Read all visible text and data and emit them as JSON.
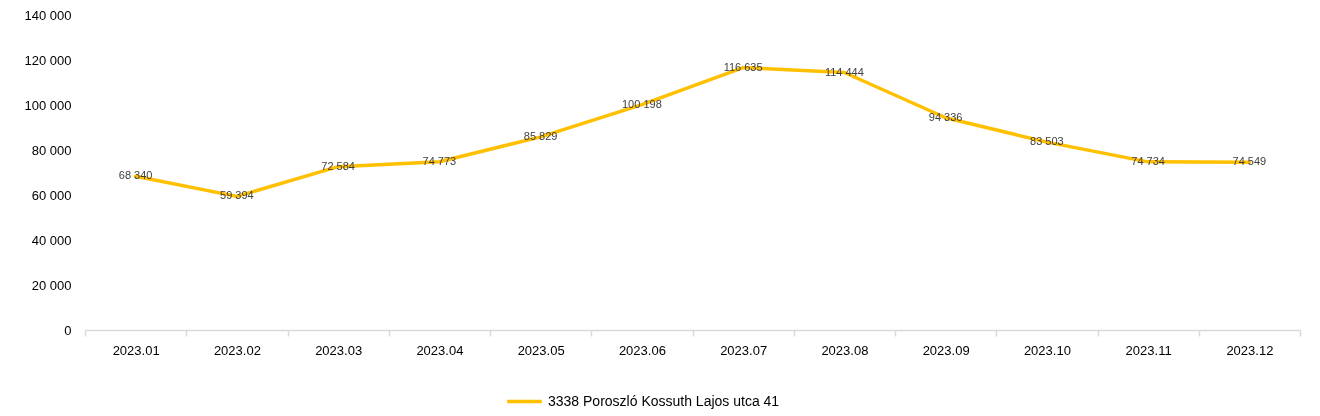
{
  "chart_data": {
    "type": "line",
    "categories": [
      "2023.01",
      "2023.02",
      "2023.03",
      "2023.04",
      "2023.05",
      "2023.06",
      "2023.07",
      "2023.08",
      "2023.09",
      "2023.10",
      "2023.11",
      "2023.12"
    ],
    "series": [
      {
        "name": "3338 Poroszló Kossuth Lajos utca 41",
        "color": "#ffc000",
        "values": [
          68340,
          59394,
          72584,
          74773,
          85829,
          100198,
          116635,
          114444,
          94336,
          83503,
          74734,
          74549
        ],
        "value_labels": [
          "68 340",
          "59 394",
          "72 584",
          "74 773",
          "85 829",
          "100 198",
          "116 635",
          "114 444",
          "94 336",
          "83 503",
          "74 734",
          "74 549"
        ]
      }
    ],
    "ylim": [
      0,
      140000
    ],
    "yticks": [
      0,
      {
        "value": 20000,
        "label": "20 000"
      },
      {
        "value": 40000,
        "label": "40 000"
      },
      {
        "value": 60000,
        "label": "60 000"
      },
      {
        "value": 80000,
        "label": "80 000"
      },
      {
        "value": 100000,
        "label": "100 000"
      },
      {
        "value": 120000,
        "label": "120 000"
      },
      {
        "value": 140000,
        "label": "140 000"
      }
    ],
    "grid": false,
    "legend": "bottom",
    "marker": "none",
    "line_style": "solid"
  }
}
